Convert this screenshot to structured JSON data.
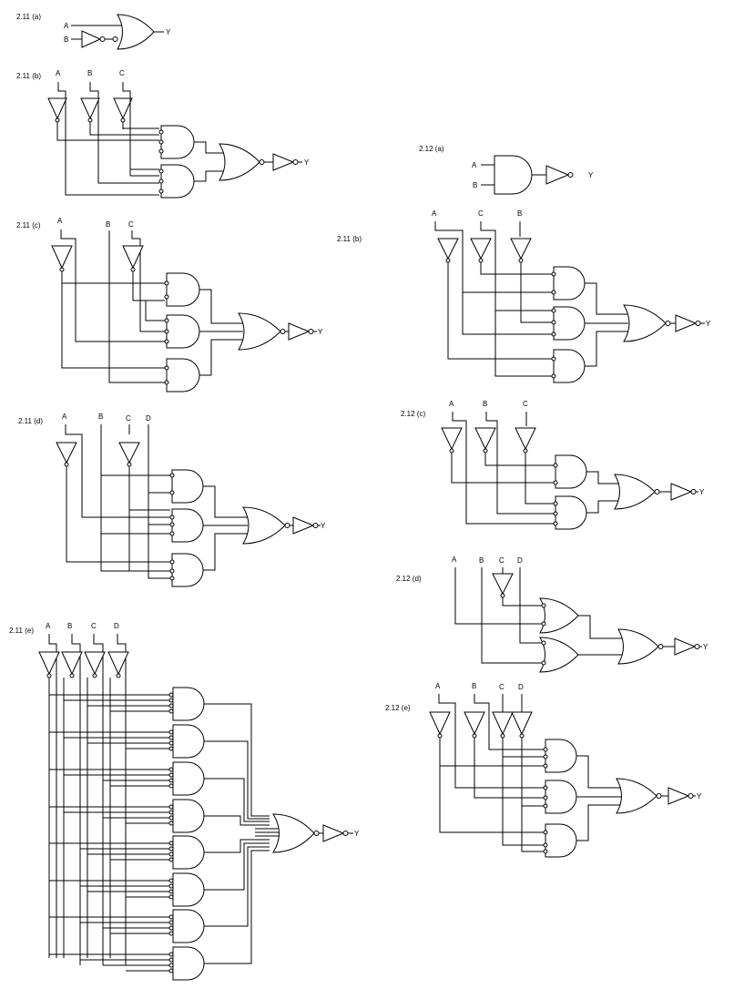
{
  "page": {
    "background": "#ffffff",
    "line_color": "#000000"
  },
  "labels": {
    "c211a": "2.11 (a)",
    "c211b": "2.11 (b)",
    "c211c": "2.11 (c)",
    "c211d": "2.11 (d)",
    "c211e": "2.11 (e)",
    "c212a": "2.12 (a)",
    "c212b": "2.11 (b)",
    "c212c": "2.12 (c)",
    "c212d": "2.12 (d)",
    "c212e": "2.12 (e)"
  },
  "signals": {
    "a": "A",
    "b": "B",
    "c": "C",
    "d": "D",
    "y": "Y"
  },
  "icons": {
    "and": "and-gate-icon",
    "or": "or-gate-icon",
    "not": "not-gate-icon",
    "bubble": "inversion-bubble-icon"
  }
}
